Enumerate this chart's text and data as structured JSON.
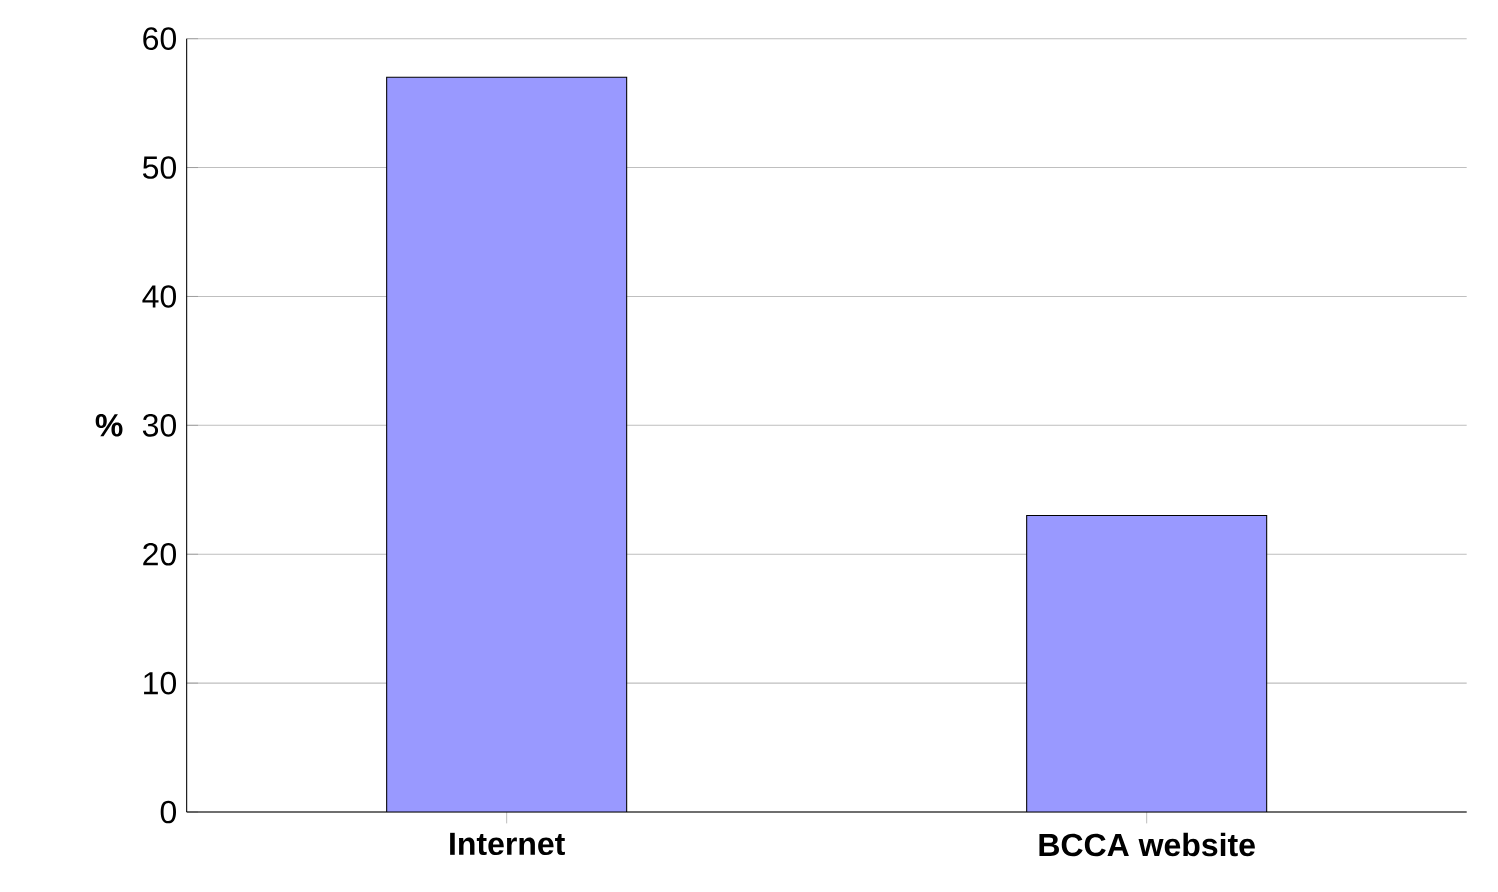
{
  "chart_data": {
    "type": "bar",
    "ylabel": "%",
    "categories": [
      "Internet",
      "BCCA website"
    ],
    "values": [
      57,
      23
    ],
    "color": "#9999ff",
    "ylim": [
      0,
      60
    ],
    "yticks": [
      0,
      10,
      20,
      30,
      40,
      50,
      60
    ],
    "grid": "y"
  }
}
